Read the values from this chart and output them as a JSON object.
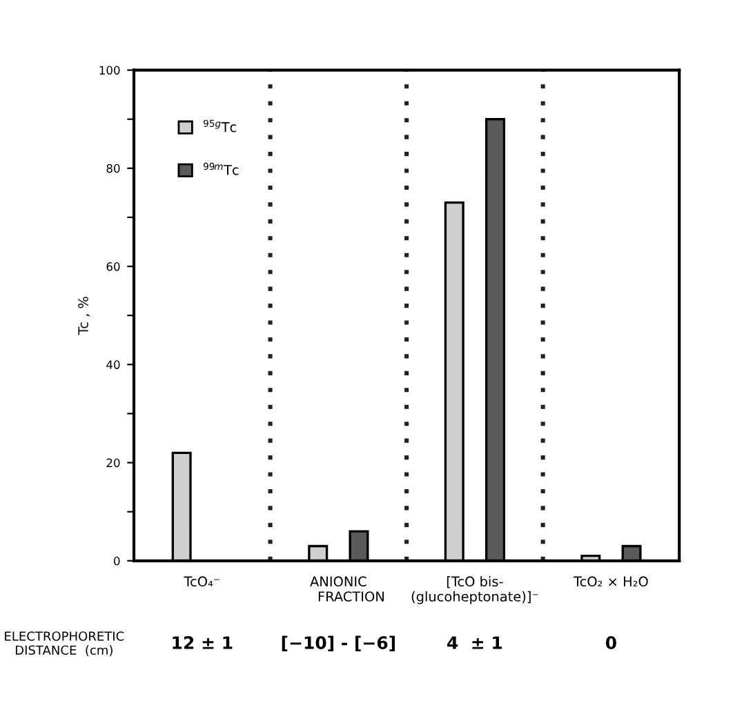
{
  "chart_data": {
    "type": "bar",
    "ylabel": "Tc , %",
    "categories": [
      "TcO₄⁻",
      "ANIONIC\n      FRACTION",
      "[TcO bis-\n(glucoheptonate)]⁻",
      "TcO₂ × H₂O"
    ],
    "series": [
      {
        "name": "$^{95g}$Tc",
        "color": "#cfcfcf",
        "values": [
          22,
          3,
          73,
          1
        ]
      },
      {
        "name": "$^{99m}$Tc",
        "color": "#5a5a5a",
        "values": [
          null,
          6,
          90,
          3
        ]
      }
    ],
    "ylim": [
      0,
      100
    ],
    "yticks": [
      0,
      {
        "value": 10,
        "label": null
      },
      20,
      {
        "value": 30,
        "label": null
      },
      40,
      {
        "value": 50,
        "label": null
      },
      60,
      {
        "value": 70,
        "label": null
      },
      80,
      {
        "value": 90,
        "label": null
      },
      100
    ],
    "annotations": [
      "ELECTROPHORETIC\nDISTANCE  (cm)",
      "12 ± 1",
      "[−10] - [−6]",
      "4  ± 1",
      "0"
    ],
    "legend": "top left",
    "grid": false
  }
}
